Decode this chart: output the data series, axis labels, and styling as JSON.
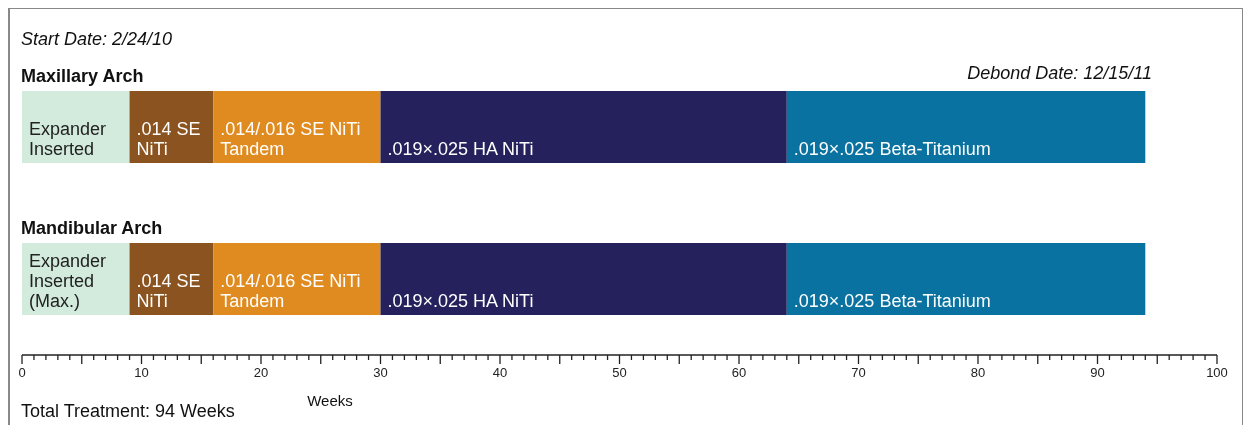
{
  "chart_data": {
    "type": "bar",
    "orientation": "horizontal",
    "stacked": true,
    "categories": [
      "Maxillary Arch",
      "Mandibular Arch"
    ],
    "series": [
      {
        "color": "#d3ebdd",
        "values": [
          9,
          9
        ]
      },
      {
        "color": "#8b531f",
        "values": [
          7,
          7
        ]
      },
      {
        "color": "#e08b20",
        "values": [
          14,
          14
        ]
      },
      {
        "color": "#25215c",
        "values": [
          34,
          34
        ]
      },
      {
        "color": "#0a72a0",
        "values": [
          30,
          30
        ]
      }
    ],
    "xlabel": "Weeks",
    "xlim": [
      0,
      100
    ],
    "xticks": [
      0,
      {
        "value": 1,
        "label": null
      },
      {
        "value": 2,
        "label": null
      },
      {
        "value": 3,
        "label": null
      },
      {
        "value": 4,
        "label": null
      },
      {
        "value": 5,
        "label": null
      },
      {
        "value": 6,
        "label": null
      },
      {
        "value": 7,
        "label": null
      },
      {
        "value": 8,
        "label": null
      },
      {
        "value": 9,
        "label": null
      },
      10,
      {
        "value": 11,
        "label": null
      },
      {
        "value": 12,
        "label": null
      },
      {
        "value": 13,
        "label": null
      },
      {
        "value": 14,
        "label": null
      },
      {
        "value": 15,
        "label": null
      },
      {
        "value": 16,
        "label": null
      },
      {
        "value": 17,
        "label": null
      },
      {
        "value": 18,
        "label": null
      },
      {
        "value": 19,
        "label": null
      },
      20,
      {
        "value": 21,
        "label": null
      },
      {
        "value": 22,
        "label": null
      },
      {
        "value": 23,
        "label": null
      },
      {
        "value": 24,
        "label": null
      },
      {
        "value": 25,
        "label": null
      },
      {
        "value": 26,
        "label": null
      },
      {
        "value": 27,
        "label": null
      },
      {
        "value": 28,
        "label": null
      },
      {
        "value": 29,
        "label": null
      },
      30,
      {
        "value": 31,
        "label": null
      },
      {
        "value": 32,
        "label": null
      },
      {
        "value": 33,
        "label": null
      },
      {
        "value": 34,
        "label": null
      },
      {
        "value": 35,
        "label": null
      },
      {
        "value": 36,
        "label": null
      },
      {
        "value": 37,
        "label": null
      },
      {
        "value": 38,
        "label": null
      },
      {
        "value": 39,
        "label": null
      },
      40,
      {
        "value": 41,
        "label": null
      },
      {
        "value": 42,
        "label": null
      },
      {
        "value": 43,
        "label": null
      },
      {
        "value": 44,
        "label": null
      },
      {
        "value": 45,
        "label": null
      },
      {
        "value": 46,
        "label": null
      },
      {
        "value": 47,
        "label": null
      },
      {
        "value": 48,
        "label": null
      },
      {
        "value": 49,
        "label": null
      },
      50,
      {
        "value": 51,
        "label": null
      },
      {
        "value": 52,
        "label": null
      },
      {
        "value": 53,
        "label": null
      },
      {
        "value": 54,
        "label": null
      },
      {
        "value": 55,
        "label": null
      },
      {
        "value": 56,
        "label": null
      },
      {
        "value": 57,
        "label": null
      },
      {
        "value": 58,
        "label": null
      },
      {
        "value": 59,
        "label": null
      },
      60,
      {
        "value": 61,
        "label": null
      },
      {
        "value": 62,
        "label": null
      },
      {
        "value": 63,
        "label": null
      },
      {
        "value": 64,
        "label": null
      },
      {
        "value": 65,
        "label": null
      },
      {
        "value": 66,
        "label": null
      },
      {
        "value": 67,
        "label": null
      },
      {
        "value": 68,
        "label": null
      },
      {
        "value": 69,
        "label": null
      },
      70,
      {
        "value": 71,
        "label": null
      },
      {
        "value": 72,
        "label": null
      },
      {
        "value": 73,
        "label": null
      },
      {
        "value": 74,
        "label": null
      },
      {
        "value": 75,
        "label": null
      },
      {
        "value": 76,
        "label": null
      },
      {
        "value": 77,
        "label": null
      },
      {
        "value": 78,
        "label": null
      },
      {
        "value": 79,
        "label": null
      },
      80,
      {
        "value": 81,
        "label": null
      },
      {
        "value": 82,
        "label": null
      },
      {
        "value": 83,
        "label": null
      },
      {
        "value": 84,
        "label": null
      },
      {
        "value": 85,
        "label": null
      },
      {
        "value": 86,
        "label": null
      },
      {
        "value": 87,
        "label": null
      },
      {
        "value": 88,
        "label": null
      },
      {
        "value": 89,
        "label": null
      },
      90,
      {
        "value": 91,
        "label": null
      },
      {
        "value": 92,
        "label": null
      },
      {
        "value": 93,
        "label": null
      },
      {
        "value": 94,
        "label": null
      },
      {
        "value": 95,
        "label": null
      },
      {
        "value": 96,
        "label": null
      },
      {
        "value": 97,
        "label": null
      },
      {
        "value": 98,
        "label": null
      },
      {
        "value": 99,
        "label": null
      },
      100
    ],
    "grid": false,
    "legend": false,
    "annotations": [
      "Start Date:  2/24/10",
      "Debond Date:  12/15/11",
      "Total Treatment: 94 Weeks",
      {
        "text": "Expander\nInserted",
        "x": 0,
        "y": "Maxillary Arch"
      },
      {
        "text": ".014 SE\nNiTi",
        "x": 9,
        "y": "Maxillary Arch"
      },
      {
        "text": ".014/.016 SE NiTi\nTandem",
        "x": 16,
        "y": "Maxillary Arch"
      },
      {
        "text": ".019×.025 HA NiTi",
        "x": 30,
        "y": "Maxillary Arch"
      },
      {
        "text": ".019×.025 Beta-Titanium",
        "x": 64,
        "y": "Maxillary Arch"
      },
      {
        "text": "Expander\nInserted\n(Max.)",
        "x": 0,
        "y": "Mandibular Arch"
      },
      {
        "text": ".014 SE\nNiTi",
        "x": 9,
        "y": "Mandibular Arch"
      },
      {
        "text": ".014/.016 SE NiTi\nTandem",
        "x": 16,
        "y": "Mandibular Arch"
      },
      {
        "text": ".019×.025 HA NiTi",
        "x": 30,
        "y": "Mandibular Arch"
      },
      {
        "text": ".019×.025 Beta-Titanium",
        "x": 64,
        "y": "Mandibular Arch"
      }
    ]
  }
}
